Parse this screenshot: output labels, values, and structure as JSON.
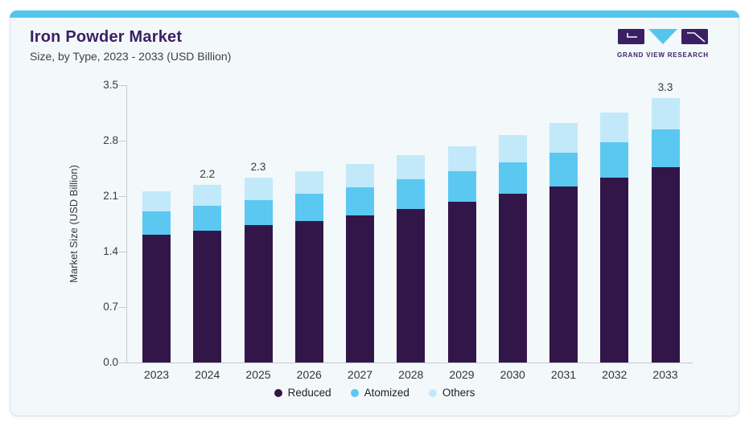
{
  "page": {
    "accent_color": "#56c5ee",
    "card_bg": "#f3f8fb"
  },
  "header": {
    "title": "Iron Powder Market",
    "subtitle": "Size, by Type, 2023 - 2033 (USD Billion)",
    "logo_text": "GRAND VIEW RESEARCH"
  },
  "chart_data": {
    "type": "bar",
    "stacked": true,
    "title": "Iron Powder Market",
    "subtitle": "Size, by Type, 2023 - 2033 (USD Billion)",
    "xlabel": "",
    "ylabel": "Market Size (USD Billion)",
    "categories": [
      "2023",
      "2024",
      "2025",
      "2026",
      "2027",
      "2028",
      "2029",
      "2030",
      "2031",
      "2032",
      "2033"
    ],
    "series": [
      {
        "name": "Reduced",
        "color": "#331649",
        "values": [
          1.61,
          1.66,
          1.73,
          1.79,
          1.86,
          1.94,
          2.03,
          2.13,
          2.22,
          2.33,
          2.47
        ]
      },
      {
        "name": "Atomized",
        "color": "#5bc8f1",
        "values": [
          0.3,
          0.32,
          0.32,
          0.34,
          0.35,
          0.37,
          0.38,
          0.4,
          0.43,
          0.45,
          0.47
        ]
      },
      {
        "name": "Others",
        "color": "#c2e9fa",
        "values": [
          0.25,
          0.26,
          0.28,
          0.28,
          0.3,
          0.31,
          0.32,
          0.34,
          0.37,
          0.38,
          0.4
        ]
      }
    ],
    "totals_labels": {
      "2024": "2.2",
      "2025": "2.3",
      "2033": "3.3"
    },
    "yticks": [
      "0.0",
      "0.7",
      "1.4",
      "2.1",
      "2.8",
      "3.5"
    ],
    "ylim": [
      0,
      3.5
    ],
    "grid": false,
    "legend_position": "bottom"
  }
}
